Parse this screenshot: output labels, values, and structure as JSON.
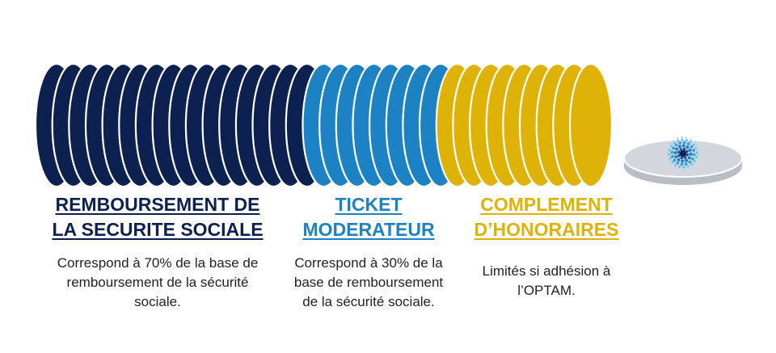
{
  "colors": {
    "navy": "#0d2150",
    "blue": "#1c82c3",
    "gold": "#dfb208",
    "coin_grey": "#c9cdd4",
    "coin_grey_top": "#d8dce2"
  },
  "sections": [
    {
      "heading_line1": "REMBOURSEMENT DE",
      "heading_line2": "LA SECURITE SOCIALE",
      "desc_line1": "Correspond à 70% de la base de",
      "desc_line2": "remboursement de la sécurité",
      "desc_line3": "sociale.",
      "color": "#0d2150"
    },
    {
      "heading_line1": "TICKET",
      "heading_line2": "MODERATEUR",
      "desc_line1": "Correspond à 30% de la",
      "desc_line2": "base de remboursement",
      "desc_line3": "de la sécurité sociale.",
      "color": "#1c82c3"
    },
    {
      "heading_line1": "COMPLEMENT",
      "heading_line2": "D’HONORAIRES",
      "desc_line1": "Limités si adhésion à",
      "desc_line2": "l’OPTAM.",
      "color": "#dfb208"
    }
  ],
  "coins": {
    "navy_count": 16,
    "blue_count": 8,
    "gold_count": 9,
    "logo": "eye-iris-logo"
  }
}
